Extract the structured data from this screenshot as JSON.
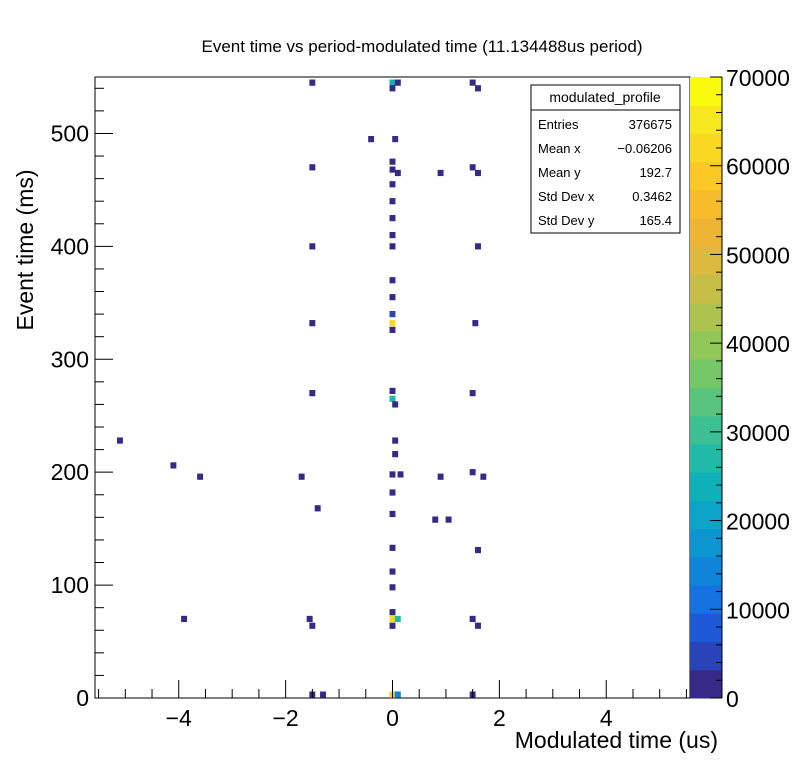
{
  "chart_data": {
    "type": "heatmap",
    "title": "Event time vs period-modulated time (11.134488us period)",
    "xlabel": "Modulated time (us)",
    "ylabel": "Event time (ms)",
    "xlim": [
      -5.567,
      5.567
    ],
    "ylim": [
      0,
      550
    ],
    "zlim": [
      0,
      70000
    ],
    "xticks": [
      -4,
      -2,
      0,
      2,
      4
    ],
    "yticks": [
      0,
      100,
      200,
      300,
      400,
      500
    ],
    "zticks": [
      0,
      10000,
      20000,
      30000,
      40000,
      50000,
      60000,
      70000
    ],
    "palette": [
      "#352a87",
      "#2943b8",
      "#1e59d7",
      "#1572e0",
      "#0f84d8",
      "#0d95d1",
      "#0ba3c8",
      "#10b0b9",
      "#21b9a7",
      "#3cbf93",
      "#59c47d",
      "#75c767",
      "#91c758",
      "#adc34f",
      "#c6be47",
      "#dcba3f",
      "#eeb535",
      "#f8bb2b",
      "#fcc826",
      "#f9d822",
      "#f6e81e",
      "#f9fa0e"
    ],
    "stats": {
      "name": "modulated_profile",
      "rows": [
        {
          "label": "Entries",
          "value": "376675"
        },
        {
          "label": "Mean x",
          "value": "−0.06206"
        },
        {
          "label": "Mean y",
          "value": "192.7"
        },
        {
          "label": "Std Dev x",
          "value": "0.3462"
        },
        {
          "label": "Std Dev y",
          "value": "165.4"
        }
      ]
    },
    "cells": [
      {
        "x": -1.5,
        "y": 545,
        "v": 1500
      },
      {
        "x": 0.0,
        "y": 545,
        "v": 25000
      },
      {
        "x": 0.1,
        "y": 545,
        "v": 1500
      },
      {
        "x": 1.5,
        "y": 545,
        "v": 1500
      },
      {
        "x": 1.6,
        "y": 540,
        "v": 1500
      },
      {
        "x": 0.0,
        "y": 540,
        "v": 1500
      },
      {
        "x": -0.4,
        "y": 495,
        "v": 1500
      },
      {
        "x": 0.05,
        "y": 495,
        "v": 1500
      },
      {
        "x": 0.0,
        "y": 475,
        "v": 1500
      },
      {
        "x": -1.5,
        "y": 470,
        "v": 1500
      },
      {
        "x": 0.0,
        "y": 468,
        "v": 1500
      },
      {
        "x": 0.1,
        "y": 465,
        "v": 1500
      },
      {
        "x": 0.9,
        "y": 465,
        "v": 1500
      },
      {
        "x": 1.5,
        "y": 470,
        "v": 1500
      },
      {
        "x": 1.6,
        "y": 465,
        "v": 1500
      },
      {
        "x": 0.0,
        "y": 455,
        "v": 1500
      },
      {
        "x": 0.0,
        "y": 440,
        "v": 1500
      },
      {
        "x": 0.0,
        "y": 425,
        "v": 1500
      },
      {
        "x": 0.0,
        "y": 410,
        "v": 1500
      },
      {
        "x": -1.5,
        "y": 400,
        "v": 1500
      },
      {
        "x": 0.0,
        "y": 400,
        "v": 1500
      },
      {
        "x": 1.6,
        "y": 400,
        "v": 1500
      },
      {
        "x": 0.0,
        "y": 370,
        "v": 1500
      },
      {
        "x": 0.0,
        "y": 355,
        "v": 1500
      },
      {
        "x": 0.0,
        "y": 340,
        "v": 3500
      },
      {
        "x": 0.0,
        "y": 332,
        "v": 62000
      },
      {
        "x": -1.5,
        "y": 332,
        "v": 1500
      },
      {
        "x": 1.55,
        "y": 332,
        "v": 1500
      },
      {
        "x": 0.0,
        "y": 326,
        "v": 1500
      },
      {
        "x": -1.5,
        "y": 270,
        "v": 1500
      },
      {
        "x": 0.0,
        "y": 272,
        "v": 1500
      },
      {
        "x": 0.0,
        "y": 265,
        "v": 28000
      },
      {
        "x": 1.5,
        "y": 270,
        "v": 1500
      },
      {
        "x": 0.05,
        "y": 260,
        "v": 1500
      },
      {
        "x": -5.1,
        "y": 228,
        "v": 1500
      },
      {
        "x": 0.05,
        "y": 228,
        "v": 1500
      },
      {
        "x": 0.05,
        "y": 216,
        "v": 1500
      },
      {
        "x": -4.1,
        "y": 206,
        "v": 1500
      },
      {
        "x": 0.0,
        "y": 198,
        "v": 1500
      },
      {
        "x": 0.15,
        "y": 198,
        "v": 1500
      },
      {
        "x": -3.6,
        "y": 196,
        "v": 1500
      },
      {
        "x": -1.7,
        "y": 196,
        "v": 1500
      },
      {
        "x": 0.9,
        "y": 196,
        "v": 1500
      },
      {
        "x": 1.5,
        "y": 200,
        "v": 1500
      },
      {
        "x": 1.7,
        "y": 196,
        "v": 1500
      },
      {
        "x": 0.0,
        "y": 182,
        "v": 1500
      },
      {
        "x": -1.4,
        "y": 168,
        "v": 1500
      },
      {
        "x": 0.0,
        "y": 163,
        "v": 1500
      },
      {
        "x": 0.8,
        "y": 158,
        "v": 1500
      },
      {
        "x": 1.05,
        "y": 158,
        "v": 1500
      },
      {
        "x": 0.0,
        "y": 133,
        "v": 1500
      },
      {
        "x": 1.6,
        "y": 131,
        "v": 1500
      },
      {
        "x": 0.0,
        "y": 112,
        "v": 1500
      },
      {
        "x": 0.0,
        "y": 98,
        "v": 1500
      },
      {
        "x": -3.9,
        "y": 70,
        "v": 1500
      },
      {
        "x": -1.55,
        "y": 70,
        "v": 1500
      },
      {
        "x": 0.0,
        "y": 76,
        "v": 1500
      },
      {
        "x": 0.0,
        "y": 70,
        "v": 63000
      },
      {
        "x": 0.1,
        "y": 70,
        "v": 28000
      },
      {
        "x": 1.5,
        "y": 70,
        "v": 1500
      },
      {
        "x": -1.5,
        "y": 64,
        "v": 1500
      },
      {
        "x": 0.0,
        "y": 64,
        "v": 1500
      },
      {
        "x": 1.6,
        "y": 64,
        "v": 1500
      },
      {
        "x": -1.5,
        "y": 3,
        "v": 1500
      },
      {
        "x": -1.3,
        "y": 3,
        "v": 1500
      },
      {
        "x": 0.0,
        "y": 3,
        "v": 60000
      },
      {
        "x": 0.1,
        "y": 3,
        "v": 15000
      },
      {
        "x": 1.5,
        "y": 3,
        "v": 1500
      }
    ]
  }
}
